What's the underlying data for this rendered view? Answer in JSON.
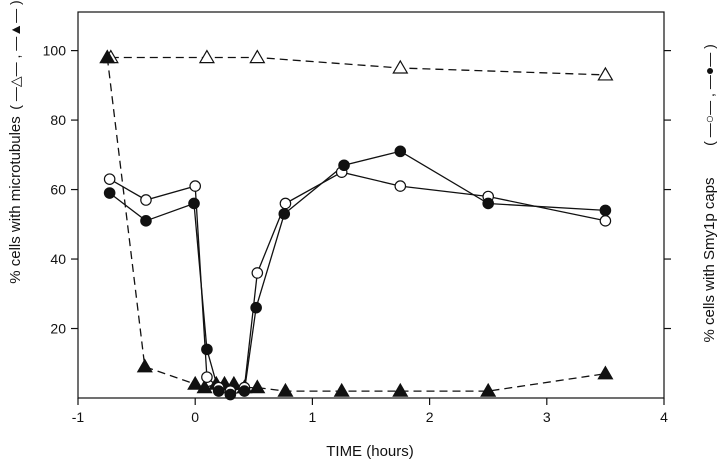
{
  "chart_data": {
    "type": "scatter",
    "xlabel": "TIME (hours)",
    "ylabel_left": "% cells with microtubules",
    "ylabel_right": "% cells with Smy1p caps",
    "legend_left": "( —△— , —▲— )",
    "legend_right": "( —○— , —●— )",
    "xlim": [
      -1,
      4
    ],
    "ylim": [
      0,
      100
    ],
    "x_ticks": [
      -1,
      0,
      1,
      2,
      3,
      4
    ],
    "x_tick_labels": [
      "-1",
      "0",
      "1",
      "2",
      "3",
      "4"
    ],
    "y_ticks": [
      20,
      40,
      60,
      80,
      100
    ],
    "y_tick_labels": [
      "20",
      "40",
      "60",
      "80",
      "100"
    ],
    "grid": false,
    "series": [
      {
        "axis": "left",
        "marker": "triangle",
        "filled": false,
        "line": "dashed",
        "x": [
          -0.72,
          0.1,
          0.53,
          1.75,
          3.5
        ],
        "y": [
          98,
          98,
          98,
          95,
          93
        ]
      },
      {
        "axis": "left",
        "marker": "triangle",
        "filled": true,
        "line": "dashed",
        "x": [
          -0.75,
          -0.43,
          0.0,
          0.08,
          0.18,
          0.25,
          0.33,
          0.42,
          0.53,
          0.77,
          1.25,
          1.75,
          2.5,
          3.5
        ],
        "y": [
          98,
          9,
          4,
          3,
          4,
          4,
          4,
          3,
          3,
          2,
          2,
          2,
          2,
          7
        ]
      },
      {
        "axis": "right",
        "marker": "circle",
        "filled": false,
        "line": "solid",
        "x": [
          -0.73,
          -0.42,
          0.0,
          0.1,
          0.2,
          0.3,
          0.42,
          0.53,
          0.77,
          1.25,
          1.75,
          2.5,
          3.5
        ],
        "y": [
          63,
          57,
          61,
          6,
          3,
          2,
          3,
          36,
          56,
          65,
          61,
          58,
          51
        ]
      },
      {
        "axis": "right",
        "marker": "circle",
        "filled": true,
        "line": "solid",
        "x": [
          -0.73,
          -0.42,
          -0.01,
          0.1,
          0.2,
          0.3,
          0.42,
          0.52,
          0.76,
          1.27,
          1.75,
          2.5,
          3.5
        ],
        "y": [
          59,
          51,
          56,
          14,
          2,
          1,
          2,
          26,
          53,
          67,
          71,
          56,
          54
        ]
      }
    ]
  }
}
